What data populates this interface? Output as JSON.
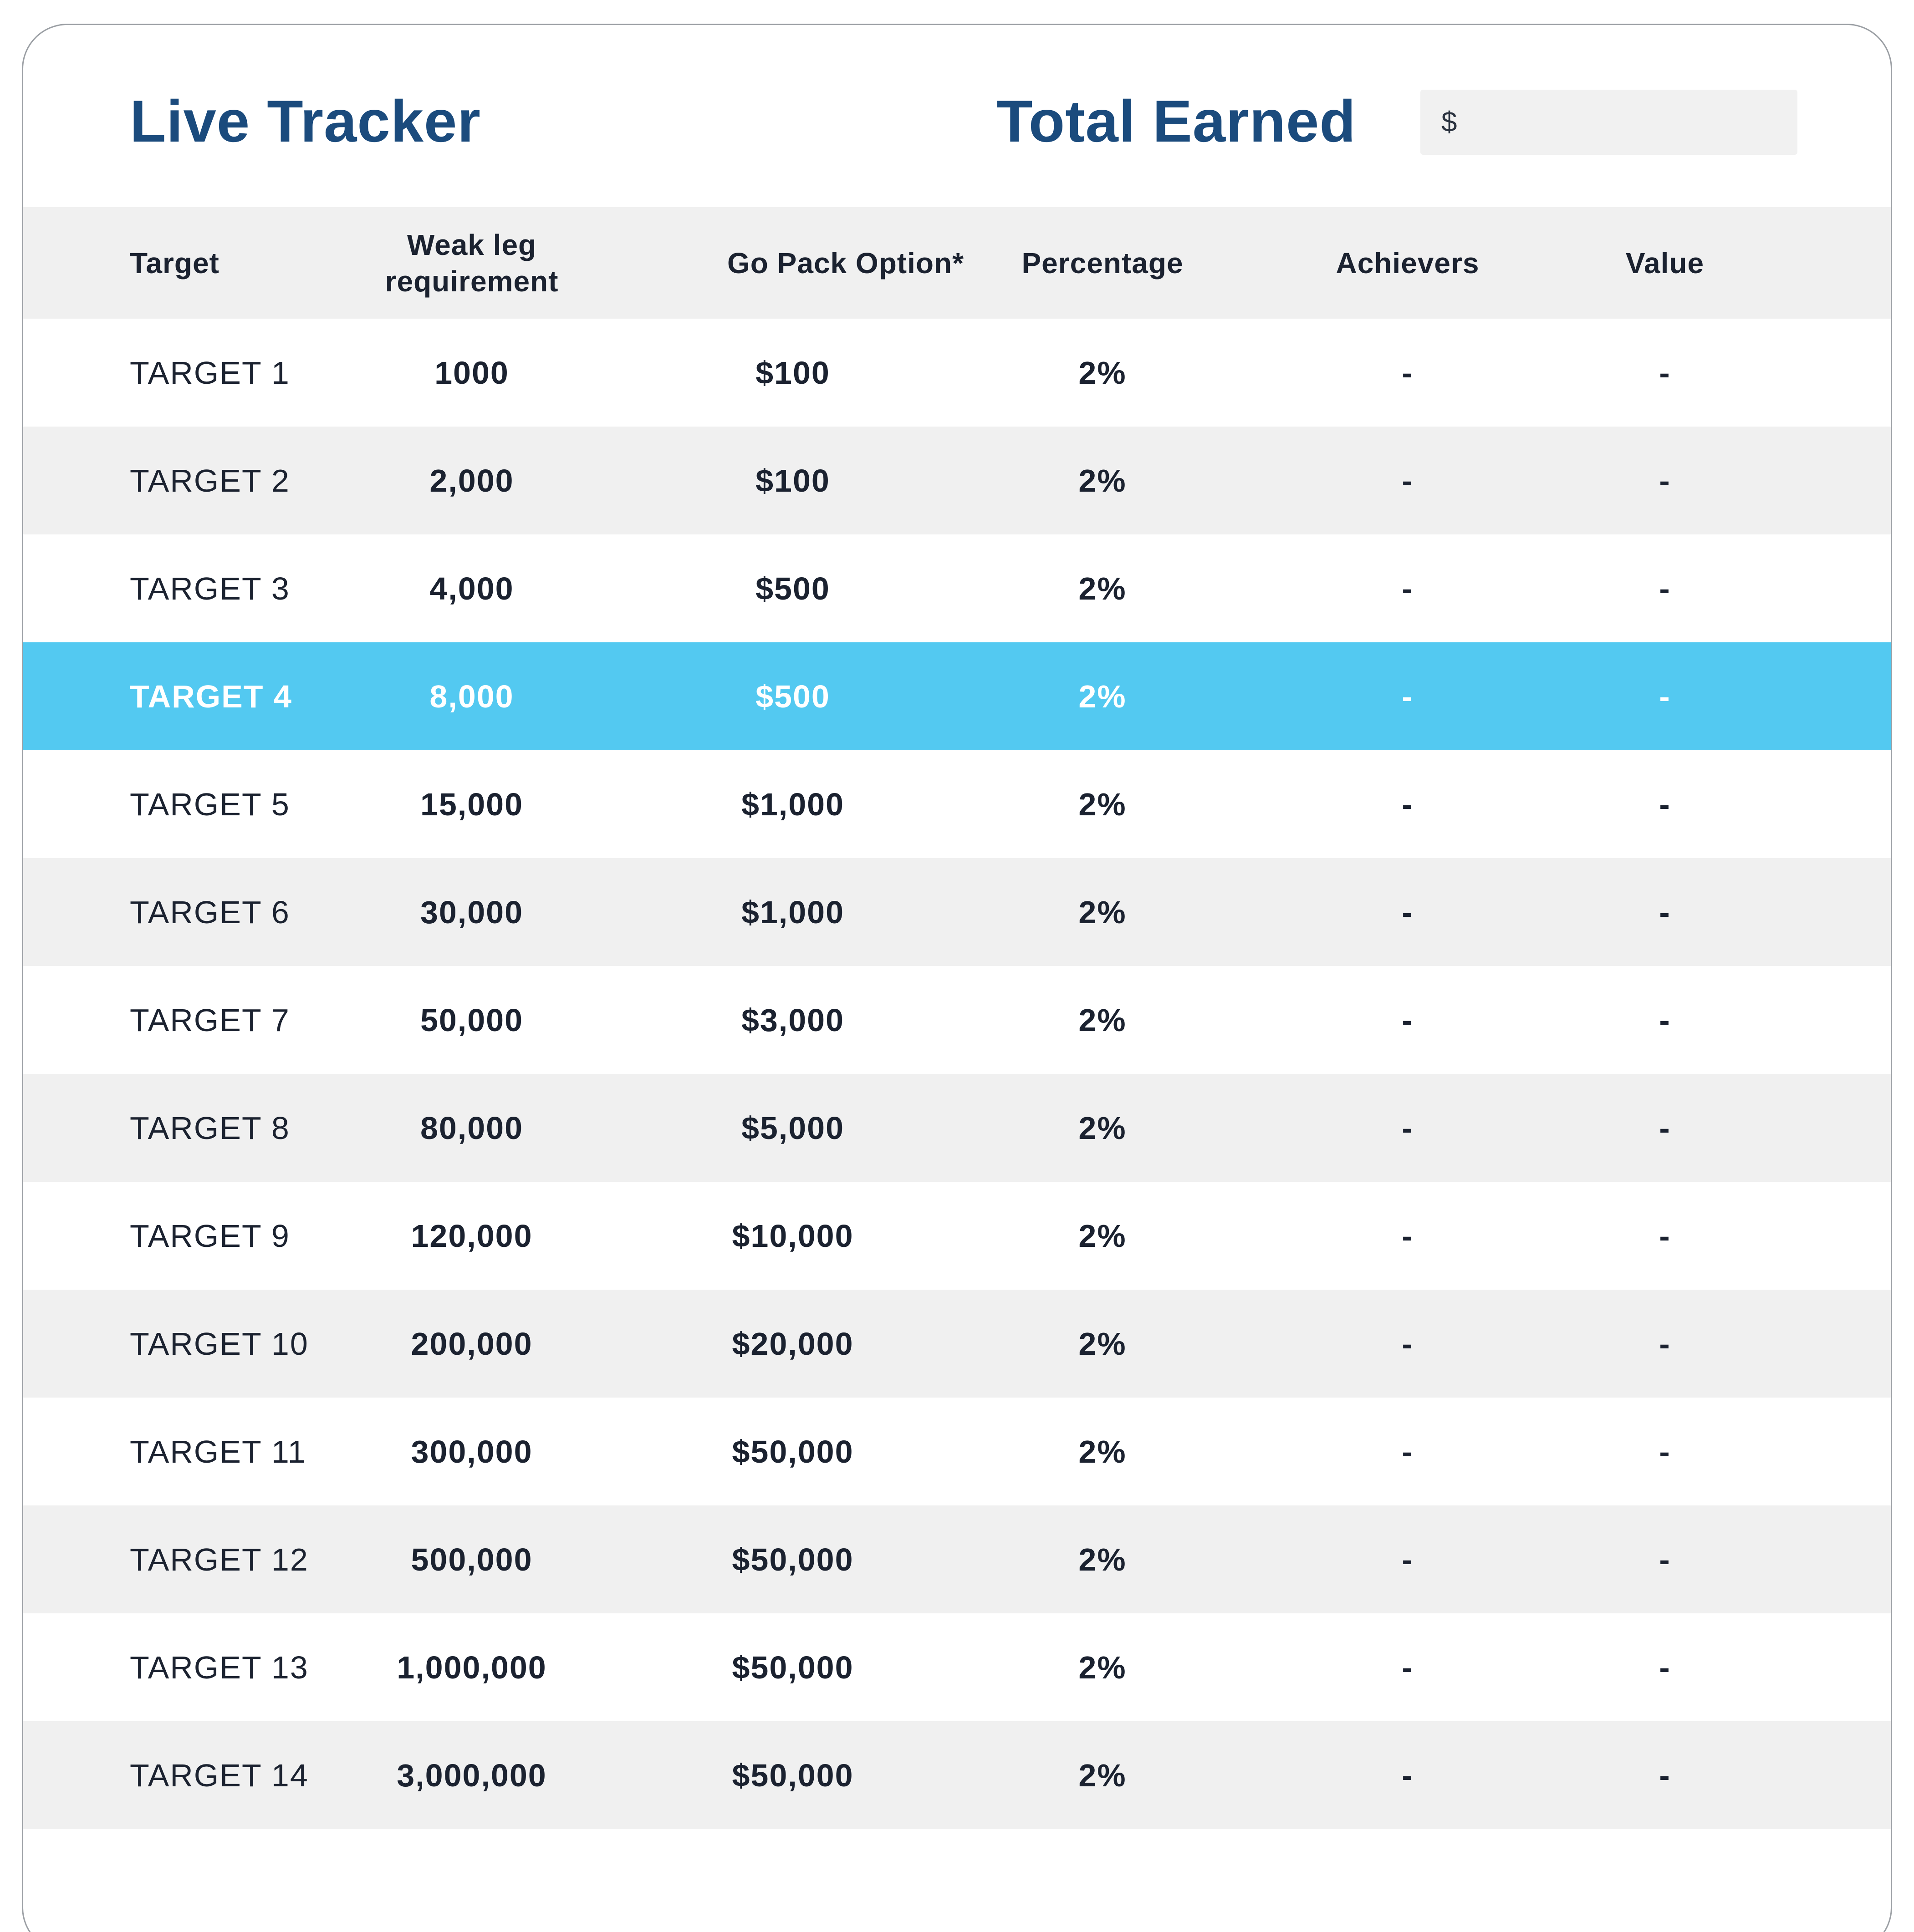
{
  "page": {
    "title": "Live Tracker",
    "total_earned_label": "Total Earned",
    "currency_prefix": "$",
    "total_earned_value": ""
  },
  "table": {
    "columns": [
      "Target",
      "Weak leg requirement",
      "Go Pack Option*",
      "Percentage",
      "Achievers",
      "Value"
    ],
    "rows": [
      {
        "target": "TARGET 1",
        "weak_leg": "1000",
        "go_pack": "$100",
        "percentage": "2%",
        "achievers": "-",
        "value": "-",
        "highlighted": false
      },
      {
        "target": "TARGET 2",
        "weak_leg": "2,000",
        "go_pack": "$100",
        "percentage": "2%",
        "achievers": "-",
        "value": "-",
        "highlighted": false
      },
      {
        "target": "TARGET 3",
        "weak_leg": "4,000",
        "go_pack": "$500",
        "percentage": "2%",
        "achievers": "-",
        "value": "-",
        "highlighted": false
      },
      {
        "target": "TARGET 4",
        "weak_leg": "8,000",
        "go_pack": "$500",
        "percentage": "2%",
        "achievers": "-",
        "value": "-",
        "highlighted": true
      },
      {
        "target": "TARGET 5",
        "weak_leg": "15,000",
        "go_pack": "$1,000",
        "percentage": "2%",
        "achievers": "-",
        "value": "-",
        "highlighted": false
      },
      {
        "target": "TARGET 6",
        "weak_leg": "30,000",
        "go_pack": "$1,000",
        "percentage": "2%",
        "achievers": "-",
        "value": "-",
        "highlighted": false
      },
      {
        "target": "TARGET 7",
        "weak_leg": "50,000",
        "go_pack": "$3,000",
        "percentage": "2%",
        "achievers": "-",
        "value": "-",
        "highlighted": false
      },
      {
        "target": "TARGET 8",
        "weak_leg": "80,000",
        "go_pack": "$5,000",
        "percentage": "2%",
        "achievers": "-",
        "value": "-",
        "highlighted": false
      },
      {
        "target": "TARGET 9",
        "weak_leg": "120,000",
        "go_pack": "$10,000",
        "percentage": "2%",
        "achievers": "-",
        "value": "-",
        "highlighted": false
      },
      {
        "target": "TARGET 10",
        "weak_leg": "200,000",
        "go_pack": "$20,000",
        "percentage": "2%",
        "achievers": "-",
        "value": "-",
        "highlighted": false
      },
      {
        "target": "TARGET 11",
        "weak_leg": "300,000",
        "go_pack": "$50,000",
        "percentage": "2%",
        "achievers": "-",
        "value": "-",
        "highlighted": false
      },
      {
        "target": "TARGET 12",
        "weak_leg": "500,000",
        "go_pack": "$50,000",
        "percentage": "2%",
        "achievers": "-",
        "value": "-",
        "highlighted": false
      },
      {
        "target": "TARGET 13",
        "weak_leg": "1,000,000",
        "go_pack": "$50,000",
        "percentage": "2%",
        "achievers": "-",
        "value": "-",
        "highlighted": false
      },
      {
        "target": "TARGET 14",
        "weak_leg": "3,000,000",
        "go_pack": "$50,000",
        "percentage": "2%",
        "achievers": "-",
        "value": "-",
        "highlighted": false
      }
    ]
  },
  "colors": {
    "title_navy": "#1B4B7D",
    "text_navy": "#1B2230",
    "accent_blue": "#53C9F1",
    "stripe_gray": "#F0F0F0",
    "card_border": "#9B9FA4",
    "field_gray": "#F1F1F1"
  }
}
